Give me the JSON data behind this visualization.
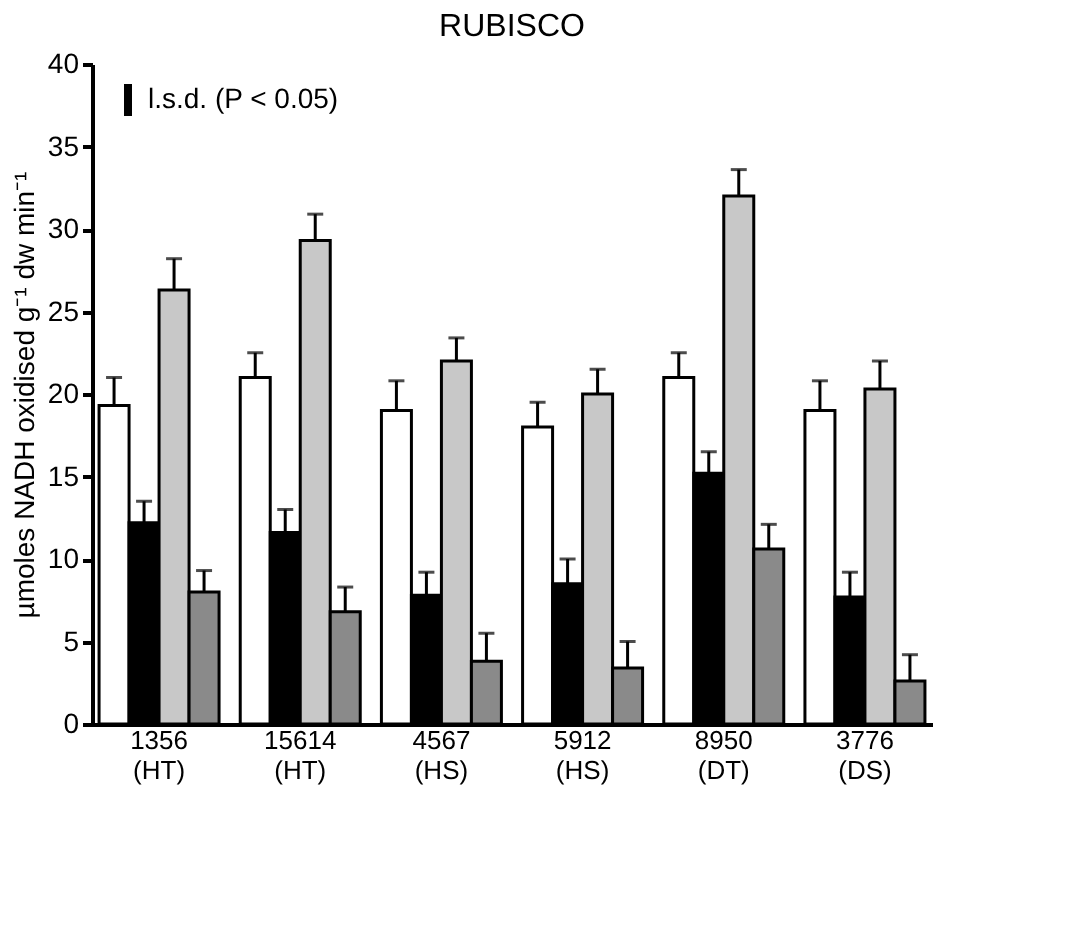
{
  "chart_data": {
    "type": "bar",
    "title": "RUBISCO",
    "ylabel": "µmoles NADH oxidised g⁻¹ dw min⁻¹",
    "categories": [
      "1356 (HT)",
      "15614 (HT)",
      "4567 (HS)",
      "5912 (HS)",
      "8950 (DT)",
      "3776 (DS)"
    ],
    "series": [
      {
        "color": "#ffffff",
        "values": [
          19.3,
          21.0,
          19.0,
          18.0,
          21.0,
          19.0
        ],
        "errors": [
          [
            19.3,
            21.0
          ],
          [
            21.0,
            22.5
          ],
          [
            19.0,
            20.8
          ],
          [
            18.0,
            19.5
          ],
          [
            21.0,
            22.5
          ],
          [
            19.0,
            20.8
          ]
        ]
      },
      {
        "color": "#000000",
        "values": [
          12.2,
          11.6,
          7.8,
          8.5,
          15.2,
          7.7
        ],
        "errors": [
          [
            12.2,
            13.5
          ],
          [
            11.6,
            13.0
          ],
          [
            7.8,
            9.2
          ],
          [
            8.5,
            10.0
          ],
          [
            15.2,
            16.5
          ],
          [
            7.7,
            9.2
          ]
        ]
      },
      {
        "color": "#c8c8c8",
        "values": [
          26.3,
          29.3,
          22.0,
          20.0,
          32.0,
          20.3
        ],
        "errors": [
          [
            26.3,
            28.2
          ],
          [
            29.3,
            30.9
          ],
          [
            22.0,
            23.4
          ],
          [
            20.0,
            21.5
          ],
          [
            32.0,
            33.6
          ],
          [
            20.3,
            22.0
          ]
        ]
      },
      {
        "color": "#8a8a8a",
        "values": [
          8.0,
          6.8,
          3.8,
          3.4,
          10.6,
          2.6
        ],
        "errors": [
          [
            8.0,
            9.3
          ],
          [
            6.8,
            8.3
          ],
          [
            3.8,
            5.5
          ],
          [
            3.4,
            5.0
          ],
          [
            10.6,
            12.1
          ],
          [
            2.6,
            4.2
          ]
        ]
      }
    ],
    "annotations": [
      "l.s.d. (P < 0.05)"
    ],
    "ylim": [
      0,
      40
    ],
    "yticks": [
      0,
      5,
      10,
      15,
      20,
      25,
      30,
      35,
      40
    ],
    "grid": false,
    "legend": false
  }
}
